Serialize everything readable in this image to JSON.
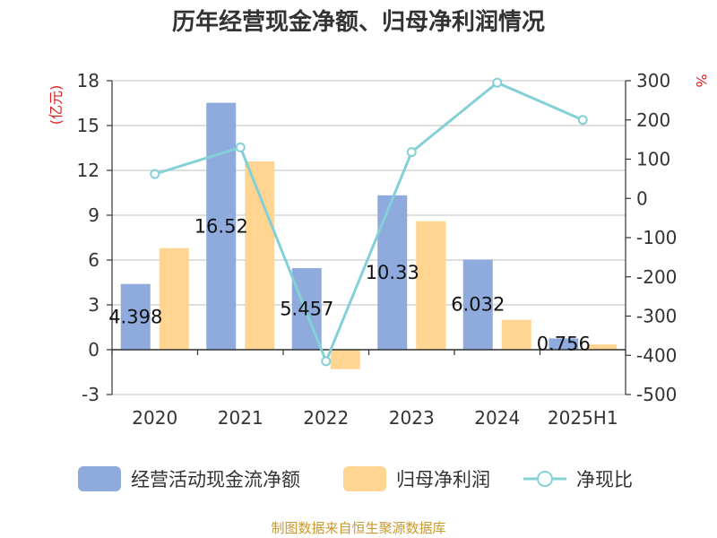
{
  "chart_data": {
    "type": "bar",
    "title": "历年经营现金净额、归母净利润情况",
    "categories": [
      "2020",
      "2021",
      "2022",
      "2023",
      "2024",
      "2025H1"
    ],
    "y_left": {
      "unit": "(亿元)",
      "range": [
        -3,
        18
      ],
      "ticks": [
        "18",
        "15",
        "12",
        "9",
        "6",
        "3",
        "0",
        "-3"
      ]
    },
    "y_right": {
      "unit": "%",
      "range": [
        -500,
        300
      ],
      "ticks": [
        "300",
        "200",
        "100",
        "0",
        "-100",
        "-200",
        "-300",
        "-400",
        "-500"
      ]
    },
    "series": [
      {
        "name": "经营活动现金流净额",
        "kind": "bar",
        "axis": "left",
        "color": "#8faadc",
        "values": [
          4.398,
          16.52,
          5.457,
          10.33,
          6.032,
          0.756
        ],
        "labels": [
          "4.398",
          "16.52",
          "5.457",
          "10.33",
          "6.032",
          "0.756"
        ]
      },
      {
        "name": "归母净利润",
        "kind": "bar",
        "axis": "left",
        "color": "#ffd591",
        "values": [
          6.8,
          12.6,
          -1.3,
          8.6,
          2.0,
          0.35
        ]
      },
      {
        "name": "净现比",
        "kind": "line",
        "axis": "right",
        "color": "#83d0d6",
        "values": [
          62,
          130,
          -415,
          118,
          295,
          200
        ]
      }
    ],
    "legend_position": "bottom",
    "grid": true,
    "source": "制图数据来自恒生聚源数据库"
  }
}
